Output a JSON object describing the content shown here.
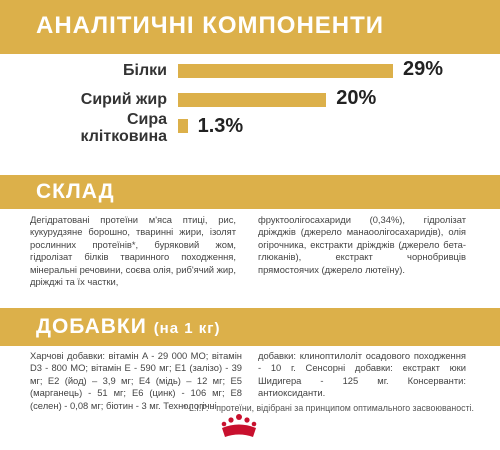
{
  "analytics": {
    "title": "АНАЛІТИЧНІ КОМПОНЕНТИ",
    "items": [
      {
        "label": "Білки",
        "value": "29%",
        "percent": 29
      },
      {
        "label": "Сирий жир",
        "value": "20%",
        "percent": 20
      },
      {
        "label_line1": "Сира",
        "label_line2": "клітковина",
        "value": "1.3%",
        "percent": 1.3
      }
    ]
  },
  "composition": {
    "title": "СКЛАД",
    "left_text": "Дегідратовані протеїни м'яса птиці, рис, кукурудзяне борошно, тваринні жири, ізолят рослинних протеїнів*, буряковий жом, гідролізат білків тваринного походження, мінеральні речовини, соєва олія, риб'ячий жир, дріжджі та їх частки,",
    "right_text": "фруктоолігосахариди (0,34%), гідролізат дріжджів (джерело манаоолігосахаридів), олія огірочника, екстракти дріжджів (джерело бета-глюканів), екстракт чорнобривців прямостоячих (джерело лютеїну)."
  },
  "additives": {
    "title": "ДОБАВКИ",
    "subtitle": "(на 1 кг)",
    "left_text": "Харчові добавки: вітамін A - 29 000 МО; вітамін D3 - 800 МО; вітамін E - 590 мг; E1 (залізо) - 39 мг; E2 (йод) – 3,9 мг; E4 (мідь) – 12 мг; E5 (марганець) - 51 мг; E6 (цинк) - 106 мг; E8 (селен) - 0,08 мг; біотин - 3 мг. Технологічні",
    "right_text": "добавки: клиноптилоліт осадового походження - 10 г. Сенсорні добавки: екстракт юки Шидигера - 125 мг. Консерванти: антиоксиданти."
  },
  "footnote": "* L.I.P. - протеїни, відібрані за принципом оптимального засвоюваності.",
  "colors": {
    "accent": "#dcb04a",
    "logo_red": "#c8102e"
  }
}
